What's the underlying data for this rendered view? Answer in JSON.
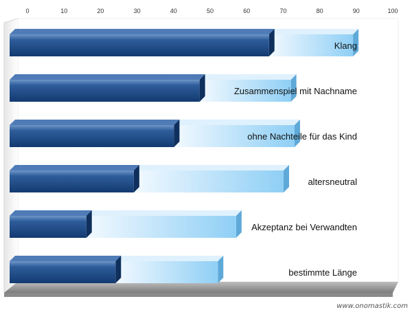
{
  "chart_data": {
    "type": "bar",
    "orientation": "horizontal",
    "stacked": true,
    "xlim": [
      0,
      100
    ],
    "x_ticks": [
      "0",
      "10",
      "20",
      "30",
      "40",
      "50",
      "60",
      "70",
      "80",
      "90",
      "100"
    ],
    "grid": false,
    "categories": [
      "Klang",
      "Zusammenspiel mit Nachname",
      "ohne Nachteile für das Kind",
      "altersneutral",
      "Akzeptanz bei Verwandten",
      "bestimmte Länge"
    ],
    "series": [
      {
        "values": [
          71,
          52,
          45,
          34,
          21,
          29
        ]
      },
      {
        "values": [
          23,
          25,
          33,
          41,
          41,
          28
        ]
      }
    ],
    "colors": [
      "#1f4e8c",
      "#a9dbf8"
    ]
  },
  "watermark": "www.onomastik.com"
}
